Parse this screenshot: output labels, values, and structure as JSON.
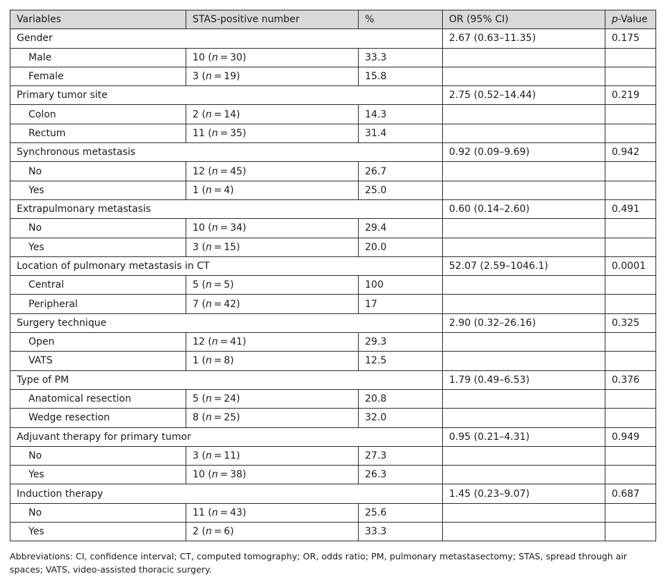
{
  "header": {
    "variables": "Variables",
    "stas_number": "STAS-positive number",
    "percent": "%",
    "or_ci": "OR (95% CI)",
    "p_italic": "p",
    "p_rest": "-Value"
  },
  "groups": [
    {
      "label": "Gender",
      "or": "2.67 (0.63–11.35)",
      "p": "0.175",
      "rows": [
        {
          "label": "Male",
          "count": "10",
          "n": "30",
          "pct": "33.3"
        },
        {
          "label": "Female",
          "count": "3",
          "n": "19",
          "pct": "15.8"
        }
      ]
    },
    {
      "label": "Primary tumor site",
      "or": "2.75 (0.52–14.44)",
      "p": "0.219",
      "rows": [
        {
          "label": "Colon",
          "count": "2",
          "n": "14",
          "pct": "14.3"
        },
        {
          "label": "Rectum",
          "count": "11",
          "n": "35",
          "pct": "31.4"
        }
      ]
    },
    {
      "label": "Synchronous metastasis",
      "or": "0.92 (0.09–9.69)",
      "p": "0.942",
      "rows": [
        {
          "label": "No",
          "count": "12",
          "n": "45",
          "pct": "26.7"
        },
        {
          "label": "Yes",
          "count": "1",
          "n": "4",
          "pct": "25.0"
        }
      ]
    },
    {
      "label": "Extrapulmonary metastasis",
      "or": "0.60 (0.14–2.60)",
      "p": "0.491",
      "rows": [
        {
          "label": "No",
          "count": "10",
          "n": "34",
          "pct": "29.4"
        },
        {
          "label": "Yes",
          "count": "3",
          "n": "15",
          "pct": "20.0"
        }
      ]
    },
    {
      "label": "Location of pulmonary metastasis in CT",
      "or": "52.07 (2.59–1046.1)",
      "p": "0.0001",
      "rows": [
        {
          "label": "Central",
          "count": "5",
          "n": "5",
          "pct": "100"
        },
        {
          "label": "Peripheral",
          "count": "7",
          "n": "42",
          "pct": "17"
        }
      ]
    },
    {
      "label": "Surgery technique",
      "or": "2.90 (0.32–26.16)",
      "p": "0.325",
      "rows": [
        {
          "label": "Open",
          "count": "12",
          "n": "41",
          "pct": "29.3"
        },
        {
          "label": "VATS",
          "count": "1",
          "n": "8",
          "pct": "12.5"
        }
      ]
    },
    {
      "label": "Type of PM",
      "or": "1.79 (0.49–6.53)",
      "p": "0.376",
      "rows": [
        {
          "label": "Anatomical resection",
          "count": "5",
          "n": "24",
          "pct": "20.8"
        },
        {
          "label": "Wedge resection",
          "count": "8",
          "n": "25",
          "pct": "32.0"
        }
      ]
    },
    {
      "label": "Adjuvant therapy for primary tumor",
      "or": "0.95 (0.21–4.31)",
      "p": "0.949",
      "rows": [
        {
          "label": "No",
          "count": "3",
          "n": "11",
          "pct": "27.3"
        },
        {
          "label": "Yes",
          "count": "10",
          "n": "38",
          "pct": "26.3"
        }
      ]
    },
    {
      "label": "Induction therapy",
      "or": "1.45 (0.23–9.07)",
      "p": "0.687",
      "rows": [
        {
          "label": "No",
          "count": "11",
          "n": "43",
          "pct": "25.6"
        },
        {
          "label": "Yes",
          "count": "2",
          "n": "6",
          "pct": "33.3"
        }
      ]
    }
  ],
  "footnote": "Abbreviations: CI, confidence interval; CT, computed tomography; OR, odds ratio; PM, pulmonary metastasectomy; STAS, spread through air spaces; VATS, video-assisted thoracic surgery."
}
